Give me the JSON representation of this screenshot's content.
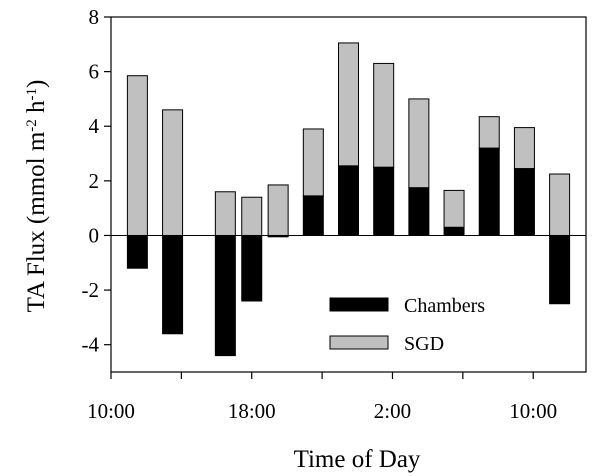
{
  "chart_data": {
    "type": "bar",
    "stacking": "overlaid-positive-negative",
    "x": [
      11.5,
      13.5,
      16.5,
      18,
      19.5,
      21.5,
      23.5,
      1.5,
      3.5,
      5.5,
      7.5,
      9.5,
      11.5
    ],
    "series": [
      {
        "name": "Chambers",
        "color": "#000000",
        "values": [
          -1.2,
          -3.6,
          -4.4,
          -2.4,
          -0.05,
          1.45,
          2.55,
          2.5,
          1.75,
          0.3,
          3.2,
          2.45,
          -2.5
        ]
      },
      {
        "name": "SGD",
        "color": "#c0c0c0",
        "values": [
          5.85,
          4.6,
          1.6,
          1.4,
          1.85,
          2.45,
          4.5,
          3.8,
          3.25,
          1.35,
          1.15,
          1.5,
          2.25
        ]
      }
    ],
    "xlabel": "Time of Day",
    "ylabel_main": "TA Flux (mmol m",
    "ylabel_exp1": "-2",
    "ylabel_mid": " h",
    "ylabel_exp2": "-1",
    "ylabel_end": ")",
    "ylim": [
      -5,
      8
    ],
    "yticks": [
      -4,
      -2,
      0,
      2,
      4,
      6,
      8
    ],
    "xticks": [
      {
        "label": "10:00",
        "pos": 0
      },
      {
        "label": "",
        "pos": 4
      },
      {
        "label": "18:00",
        "pos": 8
      },
      {
        "label": "",
        "pos": 12
      },
      {
        "label": "2:00",
        "pos": 16
      },
      {
        "label": "",
        "pos": 20
      },
      {
        "label": "10:00",
        "pos": 24
      }
    ],
    "xrange": [
      0,
      27
    ],
    "bar_positions": [
      1.5,
      3.5,
      6.5,
      8,
      9.5,
      11.5,
      13.5,
      15.5,
      17.5,
      19.5,
      21.5,
      23.5,
      25.5
    ],
    "grid": false,
    "legend_position": "lower-right"
  }
}
